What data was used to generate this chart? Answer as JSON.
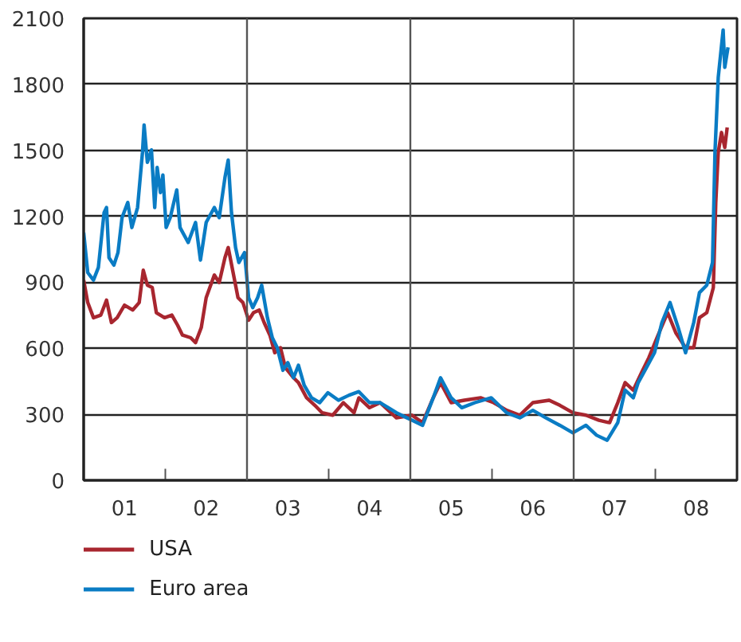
{
  "chart_data": {
    "type": "line",
    "xlim": [
      2000.5,
      2008.5
    ],
    "ylim": [
      0,
      2100
    ],
    "yticks": [
      0,
      300,
      600,
      900,
      1200,
      1500,
      1800,
      2100
    ],
    "xticks": [
      {
        "value": 2001,
        "label": "01"
      },
      {
        "value": 2002,
        "label": "02"
      },
      {
        "value": 2003,
        "label": "03"
      },
      {
        "value": 2004,
        "label": "04"
      },
      {
        "value": 2005,
        "label": "05"
      },
      {
        "value": 2006,
        "label": "06"
      },
      {
        "value": 2007,
        "label": "07"
      },
      {
        "value": 2008,
        "label": "08"
      },
      {
        "value": 2001.5,
        "label": null
      },
      {
        "value": 2002.5,
        "label": null
      },
      {
        "value": 2003.5,
        "label": null
      },
      {
        "value": 2004.5,
        "label": null
      },
      {
        "value": 2005.5,
        "label": null
      },
      {
        "value": 2006.5,
        "label": null
      },
      {
        "value": 2007.5,
        "label": null
      }
    ],
    "grid": "y",
    "legend": "bottom",
    "line_style": "solid",
    "marker": "none",
    "ref_lines": [
      {
        "axis": "x",
        "value": 2002.5,
        "label": null
      },
      {
        "axis": "x",
        "value": 2004.5,
        "label": null
      },
      {
        "axis": "x",
        "value": 2006.5,
        "label": null
      }
    ],
    "series": [
      {
        "name": "USA",
        "color": "#a8262f",
        "x": [
          2000.5,
          2000.55,
          2000.62,
          2000.71,
          2000.78,
          2000.84,
          2000.91,
          2001.0,
          2001.1,
          2001.18,
          2001.23,
          2001.28,
          2001.34,
          2001.39,
          2001.49,
          2001.58,
          2001.65,
          2001.71,
          2001.81,
          2001.87,
          2001.94,
          2002.0,
          2002.1,
          2002.16,
          2002.23,
          2002.27,
          2002.33,
          2002.39,
          2002.45,
          2002.52,
          2002.58,
          2002.65,
          2002.71,
          2002.78,
          2002.84,
          2002.91,
          2002.97,
          2003.07,
          2003.13,
          2003.23,
          2003.33,
          2003.42,
          2003.55,
          2003.68,
          2003.81,
          2003.87,
          2004.0,
          2004.13,
          2004.33,
          2004.52,
          2004.65,
          2004.78,
          2004.87,
          2005.0,
          2005.16,
          2005.36,
          2005.52,
          2005.68,
          2005.84,
          2006.0,
          2006.2,
          2006.33,
          2006.49,
          2006.65,
          2006.81,
          2006.94,
          2007.04,
          2007.13,
          2007.23,
          2007.33,
          2007.42,
          2007.52,
          2007.65,
          2007.75,
          2007.87,
          2007.97,
          2008.04,
          2008.13,
          2008.21,
          2008.24,
          2008.27,
          2008.31,
          2008.35,
          2008.38
        ],
        "values": [
          910,
          808,
          739,
          751,
          819,
          717,
          739,
          796,
          774,
          808,
          955,
          887,
          876,
          762,
          739,
          751,
          705,
          660,
          648,
          626,
          694,
          830,
          933,
          899,
          1012,
          1058,
          944,
          830,
          808,
          728,
          762,
          774,
          717,
          660,
          580,
          603,
          512,
          466,
          444,
          375,
          341,
          307,
          296,
          353,
          307,
          375,
          330,
          353,
          284,
          296,
          262,
          375,
          444,
          353,
          364,
          375,
          353,
          318,
          296,
          353,
          364,
          341,
          307,
          296,
          273,
          262,
          353,
          444,
          410,
          489,
          557,
          648,
          762,
          671,
          603,
          603,
          739,
          762,
          876,
          1263,
          1490,
          1581,
          1513,
          1604
        ]
      },
      {
        "name": "Euro area",
        "color": "#0a7cc4",
        "x": [
          2000.5,
          2000.55,
          2000.62,
          2000.68,
          2000.75,
          2000.78,
          2000.81,
          2000.87,
          2000.92,
          2000.97,
          2001.04,
          2001.09,
          2001.16,
          2001.22,
          2001.24,
          2001.28,
          2001.33,
          2001.37,
          2001.4,
          2001.44,
          2001.47,
          2001.51,
          2001.56,
          2001.64,
          2001.68,
          2001.78,
          2001.87,
          2001.93,
          2002.0,
          2002.1,
          2002.16,
          2002.23,
          2002.27,
          2002.31,
          2002.36,
          2002.4,
          2002.47,
          2002.52,
          2002.57,
          2002.63,
          2002.68,
          2002.75,
          2002.81,
          2002.87,
          2002.94,
          2003.0,
          2003.07,
          2003.13,
          2003.2,
          2003.29,
          2003.39,
          2003.49,
          2003.62,
          2003.75,
          2003.87,
          2004.0,
          2004.13,
          2004.33,
          2004.52,
          2004.65,
          2004.78,
          2004.87,
          2005.0,
          2005.13,
          2005.29,
          2005.49,
          2005.68,
          2005.84,
          2006.0,
          2006.16,
          2006.33,
          2006.49,
          2006.65,
          2006.78,
          2006.91,
          2007.04,
          2007.13,
          2007.23,
          2007.29,
          2007.39,
          2007.49,
          2007.58,
          2007.68,
          2007.78,
          2007.87,
          2007.97,
          2008.04,
          2008.13,
          2008.2,
          2008.23,
          2008.27,
          2008.33,
          2008.35,
          2008.39
        ],
        "values": [
          1126,
          944,
          910,
          967,
          1217,
          1240,
          1012,
          978,
          1035,
          1194,
          1263,
          1149,
          1240,
          1490,
          1615,
          1445,
          1502,
          1240,
          1422,
          1308,
          1388,
          1149,
          1194,
          1320,
          1149,
          1081,
          1172,
          1001,
          1172,
          1240,
          1194,
          1376,
          1456,
          1217,
          1058,
          990,
          1035,
          830,
          785,
          830,
          887,
          739,
          648,
          603,
          500,
          535,
          466,
          523,
          432,
          375,
          353,
          398,
          364,
          387,
          403,
          353,
          353,
          307,
          273,
          250,
          375,
          466,
          375,
          330,
          353,
          375,
          307,
          284,
          318,
          284,
          250,
          216,
          250,
          205,
          182,
          262,
          410,
          375,
          444,
          512,
          580,
          717,
          808,
          694,
          580,
          717,
          853,
          887,
          990,
          1490,
          1831,
          2047,
          1877,
          1968
        ]
      }
    ]
  }
}
